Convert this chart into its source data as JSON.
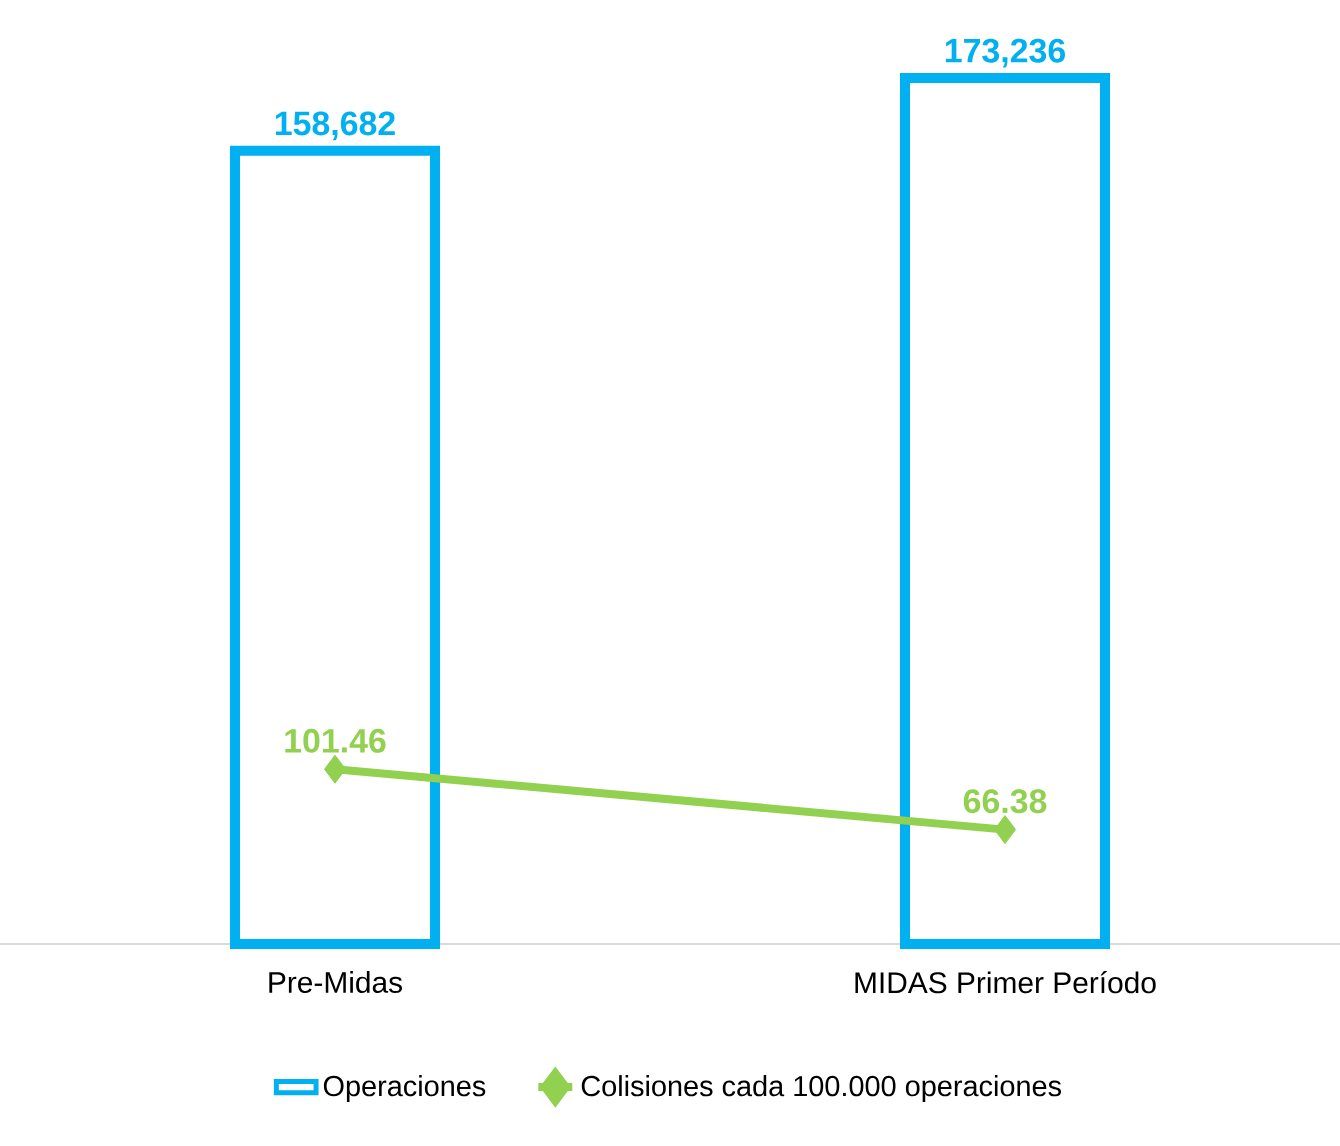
{
  "chart_data": {
    "type": "bar",
    "categories": [
      "Pre-Midas",
      "MIDAS Primer Período"
    ],
    "series": [
      {
        "name": "Operaciones",
        "color": "#00b0f0",
        "values": [
          158682,
          173236
        ],
        "value_labels": [
          "158,682",
          "173,236"
        ]
      },
      {
        "name": "Colisiones cada 100.000 operaciones",
        "type": "line",
        "axis": "y2",
        "color": "#92d050",
        "marker": "diamond",
        "values": [
          101.46,
          66.38
        ],
        "value_labels": [
          "101.46",
          "66.38"
        ]
      }
    ],
    "tick_labels": "x",
    "legend": "bottom"
  }
}
